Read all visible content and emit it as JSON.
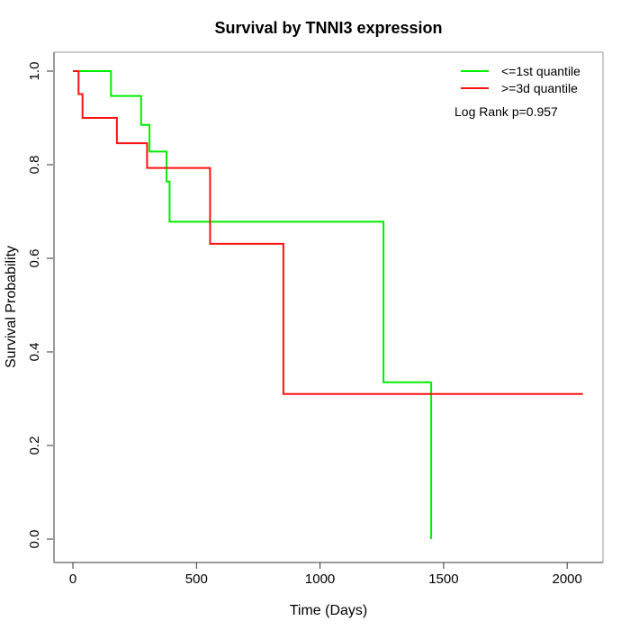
{
  "chart_data": {
    "type": "line",
    "subtype": "kaplan-meier-step",
    "title": "Survival by TNNI3 expression",
    "xlabel": "Time (Days)",
    "ylabel": "Survival Probability",
    "xlim": [
      0,
      2145
    ],
    "ylim": [
      0.0,
      1.0
    ],
    "grid": false,
    "x_ticks": [
      0,
      500,
      1000,
      1500,
      2000
    ],
    "x_tick_labels": [
      "0",
      "500",
      "1000",
      "1500",
      "2000"
    ],
    "y_ticks": [
      0.0,
      0.2,
      0.4,
      0.6,
      0.8,
      1.0
    ],
    "y_tick_labels": [
      "0.0",
      "0.2",
      "0.4",
      "0.6",
      "0.8",
      "1.0"
    ],
    "legend": {
      "position": "top-right",
      "entries": [
        {
          "label": "<=1st quantile",
          "color": "#00ee00"
        },
        {
          "label": ">=3d quantile",
          "color": "#ff1111"
        }
      ]
    },
    "annotation": "Log Rank p=0.957",
    "series": [
      {
        "name": "<=1st quantile",
        "color": "#00ee00",
        "draw_order": 1,
        "step_points": [
          [
            0,
            1.0
          ],
          [
            154,
            0.947
          ],
          [
            276,
            0.885
          ],
          [
            310,
            0.828
          ],
          [
            379,
            0.764
          ],
          [
            391,
            0.678
          ],
          [
            1257,
            0.335
          ],
          [
            1450,
            0.0
          ]
        ],
        "end_time": 1450
      },
      {
        "name": ">=3d quantile",
        "color": "#ff1111",
        "draw_order": 2,
        "step_points": [
          [
            0,
            1.0
          ],
          [
            23,
            0.951
          ],
          [
            39,
            0.9
          ],
          [
            178,
            0.846
          ],
          [
            300,
            0.793
          ],
          [
            555,
            0.631
          ],
          [
            852,
            0.31
          ]
        ],
        "end_time": 2064
      }
    ]
  }
}
